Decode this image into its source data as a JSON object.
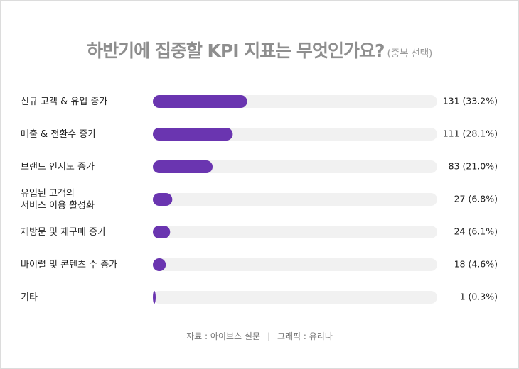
{
  "title": "하반기에 집중할 KPI 지표는 무엇인가요?",
  "subtitle": "(중복 선택)",
  "source": {
    "left": "자료 : 아이보스 설문",
    "separator": "|",
    "right": "그래픽 : 유리나"
  },
  "colors": {
    "bar": "#6a35b0",
    "track": "#f1f1f1",
    "label": "#222222",
    "value": "#222222"
  },
  "chart_data": {
    "type": "bar",
    "orientation": "horizontal",
    "categories": [
      [
        "신규 고객 & 유입 증가"
      ],
      [
        "매출 & 전환수 증가"
      ],
      [
        "브랜드 인지도 증가"
      ],
      [
        "유입된 고객의",
        "서비스 이용 활성화"
      ],
      [
        "재방문 및 재구매 증가"
      ],
      [
        "바이럴 및 콘텐츠 수 증가"
      ],
      [
        "기타"
      ]
    ],
    "values": [
      131,
      111,
      83,
      27,
      24,
      18,
      1
    ],
    "value_labels": [
      "131 (33.2%)",
      "111 (28.1%)",
      "83 (21.0%)",
      "27 (6.8%)",
      "24 (6.1%)",
      "18 (4.6%)",
      "1 (0.3%)"
    ],
    "xlim": [
      0,
      395
    ]
  }
}
